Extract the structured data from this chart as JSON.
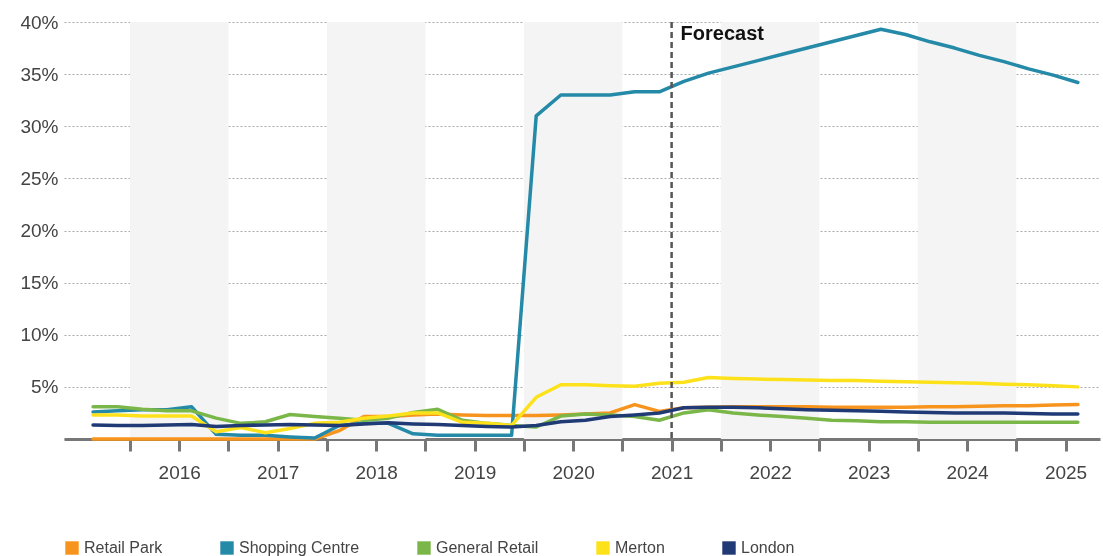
{
  "chart_data": {
    "type": "line",
    "x": [
      2015.125,
      2015.375,
      2015.625,
      2015.875,
      2016.125,
      2016.375,
      2016.625,
      2016.875,
      2017.125,
      2017.375,
      2017.625,
      2017.875,
      2018.125,
      2018.375,
      2018.625,
      2018.875,
      2019.125,
      2019.375,
      2019.625,
      2019.875,
      2020.125,
      2020.375,
      2020.625,
      2020.875,
      2021.125,
      2021.375,
      2021.625,
      2021.875,
      2022.125,
      2022.375,
      2022.625,
      2022.875,
      2023.125,
      2023.375,
      2023.625,
      2023.875,
      2024.125,
      2024.375,
      2024.625,
      2024.875,
      2025.125
    ],
    "series": [
      {
        "name": "Retail Park",
        "color": "#f7941d",
        "values": [
          0,
          0,
          0,
          0,
          0,
          0,
          0,
          0,
          0,
          0,
          0.8,
          2.15,
          2.15,
          2.3,
          2.4,
          2.3,
          2.25,
          2.25,
          2.25,
          2.3,
          2.4,
          2.5,
          3.3,
          2.65,
          3.0,
          3.05,
          3.1,
          3.1,
          3.1,
          3.1,
          3.05,
          3.05,
          3.05,
          3.05,
          3.1,
          3.1,
          3.15,
          3.2,
          3.2,
          3.25,
          3.3
        ]
      },
      {
        "name": "Shopping Centre",
        "color": "#2589a8",
        "values": [
          2.6,
          2.7,
          2.8,
          2.8,
          3.1,
          0.45,
          0.35,
          0.35,
          0.2,
          0.1,
          1.3,
          1.5,
          1.5,
          0.5,
          0.35,
          0.35,
          0.35,
          0.35,
          31,
          33,
          33,
          33,
          33.3,
          33.3,
          34.3,
          35.1,
          35.7,
          36.3,
          36.9,
          37.5,
          38.1,
          38.7,
          39.3,
          38.8,
          38.1,
          37.5,
          36.8,
          36.2,
          35.5,
          34.9,
          34.2
        ]
      },
      {
        "name": "General Retail",
        "color": "#7ab648",
        "values": [
          3.1,
          3.1,
          2.85,
          2.7,
          2.7,
          2.0,
          1.5,
          1.65,
          2.35,
          2.15,
          2.0,
          1.8,
          2.0,
          2.55,
          2.85,
          1.8,
          1.5,
          1.3,
          1.15,
          2.2,
          2.4,
          2.3,
          2.15,
          1.8,
          2.5,
          2.8,
          2.5,
          2.3,
          2.15,
          2.0,
          1.8,
          1.75,
          1.65,
          1.65,
          1.6,
          1.6,
          1.6,
          1.6,
          1.6,
          1.6,
          1.6
        ]
      },
      {
        "name": "Merton",
        "color": "#fde21b",
        "values": [
          2.3,
          2.3,
          2.2,
          2.2,
          2.2,
          0.7,
          1.1,
          0.6,
          1.0,
          1.5,
          1.6,
          2.0,
          2.2,
          2.5,
          2.5,
          1.6,
          1.5,
          1.3,
          4.0,
          5.2,
          5.2,
          5.1,
          5.05,
          5.35,
          5.45,
          5.9,
          5.8,
          5.75,
          5.7,
          5.65,
          5.6,
          5.6,
          5.55,
          5.5,
          5.45,
          5.4,
          5.35,
          5.25,
          5.2,
          5.1,
          5.0
        ]
      },
      {
        "name": "London",
        "color": "#1f3a75",
        "values": [
          1.35,
          1.3,
          1.3,
          1.35,
          1.4,
          1.2,
          1.3,
          1.35,
          1.4,
          1.35,
          1.3,
          1.45,
          1.55,
          1.45,
          1.4,
          1.3,
          1.2,
          1.15,
          1.3,
          1.65,
          1.8,
          2.15,
          2.3,
          2.5,
          3.0,
          3.05,
          3.05,
          3.0,
          2.9,
          2.8,
          2.75,
          2.7,
          2.65,
          2.6,
          2.55,
          2.5,
          2.5,
          2.5,
          2.45,
          2.4,
          2.4
        ]
      }
    ],
    "xlim": [
      2014.83,
      2025.35
    ],
    "xticks": [
      {
        "value": 2015.5,
        "label": null
      },
      2016,
      {
        "value": 2016.5,
        "label": null
      },
      2017,
      {
        "value": 2017.5,
        "label": null
      },
      2018,
      {
        "value": 2018.5,
        "label": null
      },
      2019,
      {
        "value": 2019.5,
        "label": null
      },
      2020,
      {
        "value": 2020.5,
        "label": null
      },
      2021,
      {
        "value": 2021.5,
        "label": null
      },
      2022,
      {
        "value": 2022.5,
        "label": null
      },
      2023,
      {
        "value": 2023.5,
        "label": null
      },
      2024,
      {
        "value": 2024.5,
        "label": null
      },
      2025
    ],
    "ylim": [
      0,
      40
    ],
    "yticks": [
      {
        "value": 0,
        "label": null
      },
      {
        "value": 5,
        "label": "5%"
      },
      {
        "value": 10,
        "label": "10%"
      },
      {
        "value": 15,
        "label": "15%"
      },
      {
        "value": 20,
        "label": "20%"
      },
      {
        "value": 25,
        "label": "25%"
      },
      {
        "value": 30,
        "label": "30%"
      },
      {
        "value": 35,
        "label": "35%"
      },
      {
        "value": 40,
        "label": "40%"
      }
    ],
    "ref_lines": [
      {
        "axis": "x",
        "value": 2021,
        "label": "Forecast",
        "color": "#555555",
        "line_style": "dashed"
      }
    ],
    "bands": [
      {
        "axis": "x",
        "from": 2015.5,
        "to": 2016.5,
        "color": "#f4f4f4"
      },
      {
        "axis": "x",
        "from": 2017.5,
        "to": 2018.5,
        "color": "#f4f4f4"
      },
      {
        "axis": "x",
        "from": 2019.5,
        "to": 2020.5,
        "color": "#f4f4f4"
      },
      {
        "axis": "x",
        "from": 2021.5,
        "to": 2022.5,
        "color": "#f4f4f4"
      },
      {
        "axis": "x",
        "from": 2023.5,
        "to": 2024.5,
        "color": "#f4f4f4"
      }
    ],
    "grid": "y",
    "legend": "bottom",
    "marker": "none",
    "line_style": "solid"
  }
}
